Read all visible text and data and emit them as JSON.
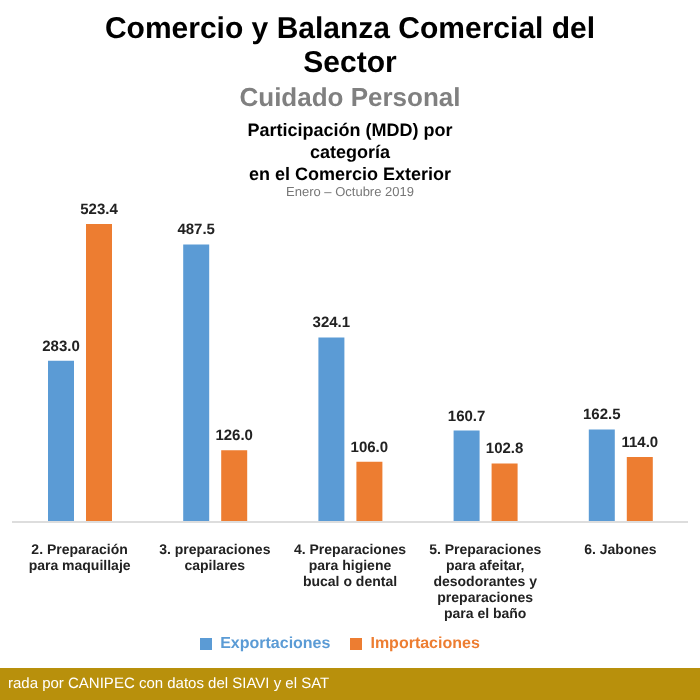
{
  "chart_data": {
    "type": "bar",
    "title": "Comercio y Balanza Comercial del Sector",
    "subtitle": "Cuidado Personal\nParticipación (MDD) por categoría\nen el Comercio Exterior\nEnero – Octubre 2019",
    "categories": [
      "2. Preparación para maquillaje",
      "3. preparaciones capilares",
      "4. Preparaciones para higiene bucal o dental",
      "5. Preparaciones para afeitar, desodorantes y preparaciones para el baño",
      "6. Jabones"
    ],
    "series": [
      {
        "name": "Exportaciones",
        "color": "#5b9bd5",
        "values": [
          283.0,
          487.5,
          324.1,
          160.7,
          162.5
        ],
        "value_labels": [
          "283.0",
          "487.5",
          "324.1",
          "160.7",
          "162.5"
        ]
      },
      {
        "name": "Importaciones",
        "color": "#ed7d31",
        "values": [
          523.4,
          126.0,
          106.0,
          102.8,
          114.0
        ],
        "value_labels": [
          "523.4",
          "126.0",
          "106.0",
          "102.8",
          "114.0"
        ]
      }
    ],
    "legend": "bottom",
    "annotations": [
      "rada por CANIPEC con datos del SIAVI y el SAT"
    ]
  }
}
